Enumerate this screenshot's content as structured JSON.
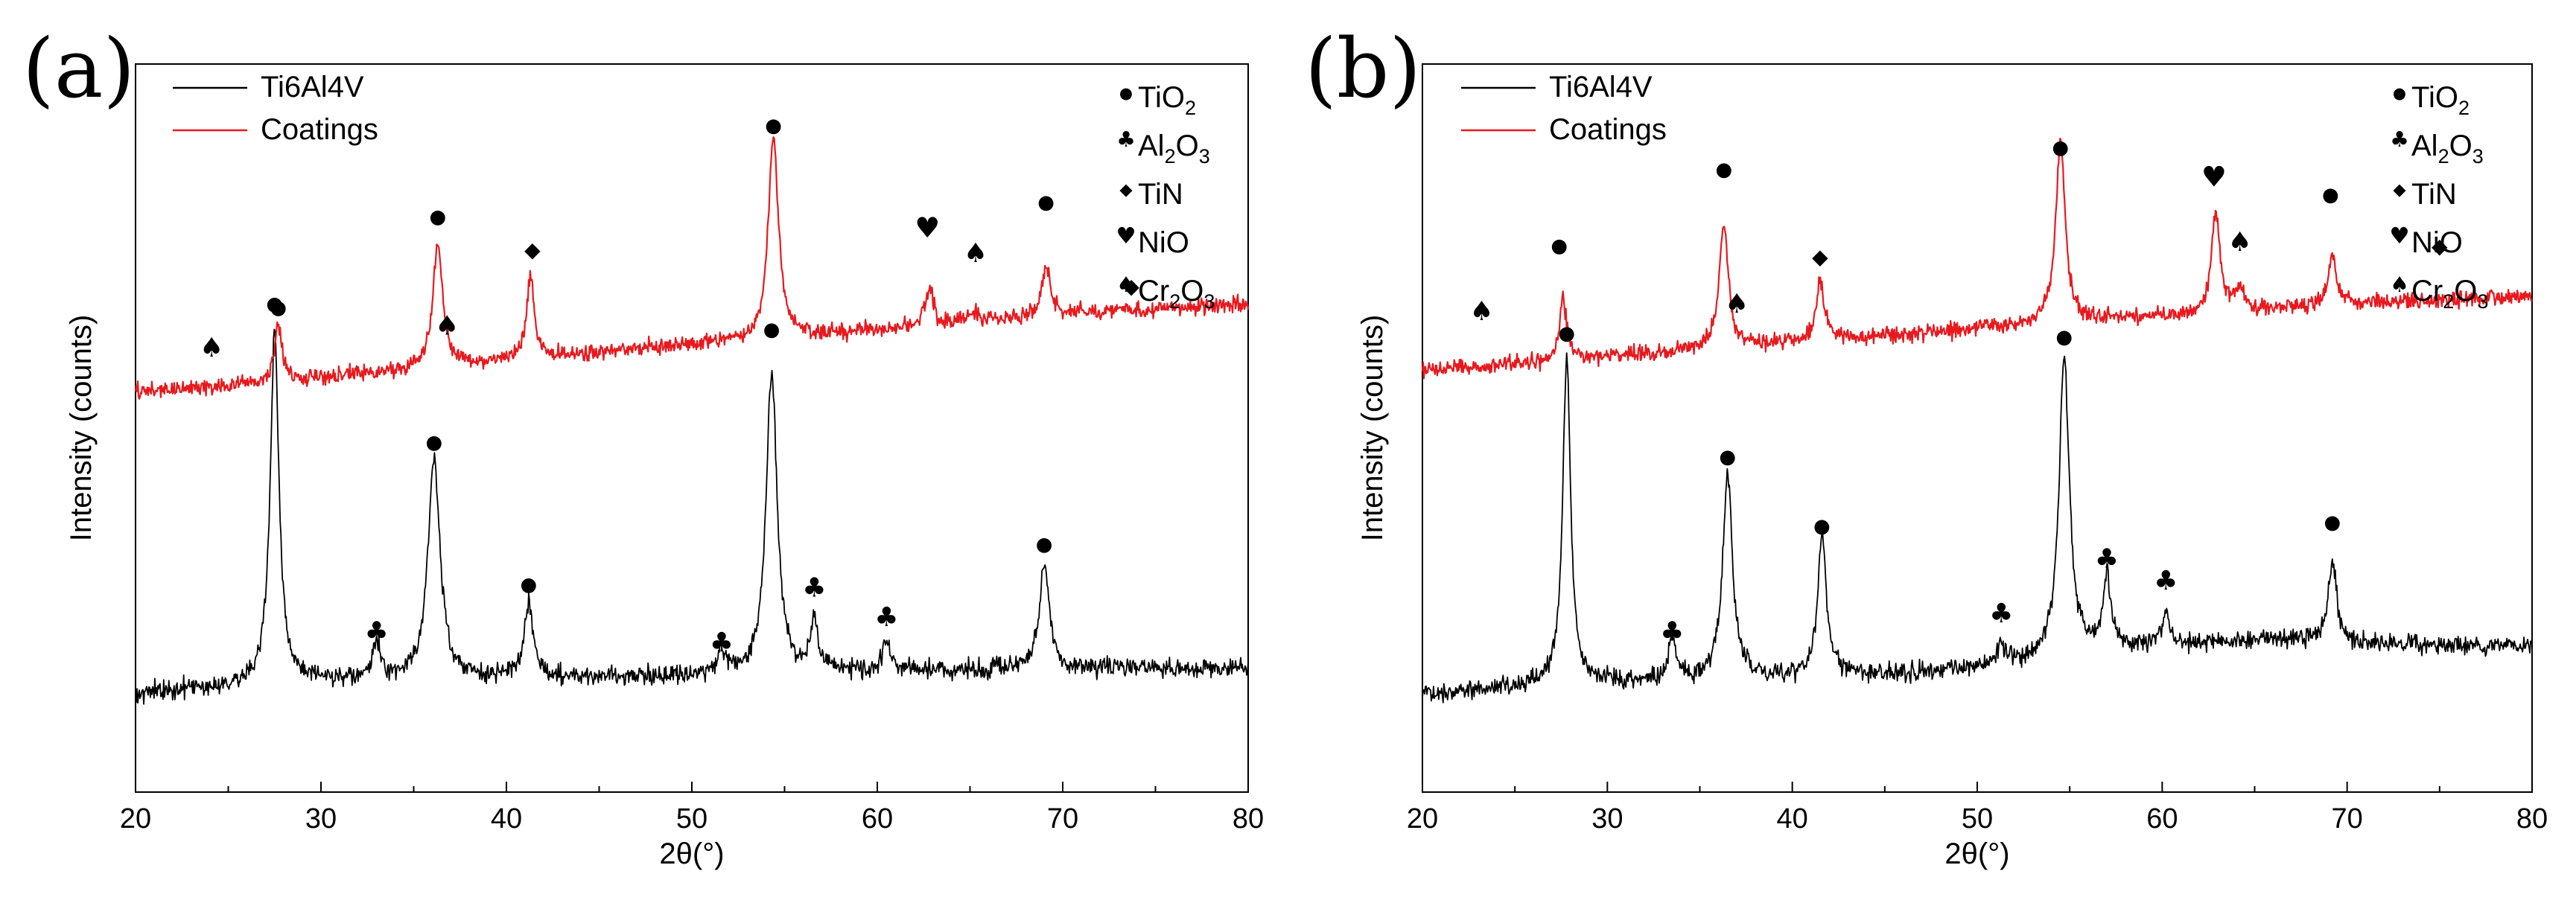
{
  "chart_data": [
    {
      "type": "line",
      "panel_label": "(a)",
      "xlabel": "2θ(°)",
      "ylabel": "Intensity (counts)",
      "xlim": [
        20,
        80
      ],
      "ylim": [
        0,
        100
      ],
      "xticks": [
        "20",
        "30",
        "40",
        "50",
        "60",
        "70",
        "80"
      ],
      "grid": false,
      "legend_position": "top-left",
      "series": [
        {
          "name": "Ti6Al4V",
          "color": "#000000",
          "baseline": [
            [
              20,
              13.5
            ],
            [
              27,
              15.0
            ],
            [
              30,
              15.2
            ],
            [
              35,
              15.3
            ],
            [
              40,
              15.6
            ],
            [
              45,
              15.8
            ],
            [
              50,
              16.0
            ],
            [
              55,
              16.2
            ],
            [
              60,
              16.6
            ],
            [
              65,
              16.8
            ],
            [
              70,
              17.0
            ],
            [
              75,
              17.0
            ],
            [
              80,
              17.0
            ]
          ],
          "noise": 1.3,
          "peaks": [
            [
              27.5,
              48.5,
              0.28
            ],
            [
              33.0,
              5.0,
              0.25
            ],
            [
              36.1,
              30.0,
              0.4
            ],
            [
              41.2,
              10.0,
              0.3
            ],
            [
              51.6,
              3.0,
              0.25
            ],
            [
              54.3,
              41.5,
              0.35
            ],
            [
              56.6,
              7.0,
              0.25
            ],
            [
              60.5,
              4.0,
              0.25
            ],
            [
              69.0,
              15.0,
              0.3
            ]
          ]
        },
        {
          "name": "Coatings",
          "color": "#e8191e",
          "baseline": [
            [
              20,
              55.0
            ],
            [
              25,
              55.8
            ],
            [
              30,
              57.0
            ],
            [
              35,
              58.0
            ],
            [
              40,
              59.2
            ],
            [
              45,
              60.4
            ],
            [
              50,
              61.4
            ],
            [
              55,
              62.5
            ],
            [
              60,
              63.4
            ],
            [
              65,
              64.5
            ],
            [
              70,
              65.6
            ],
            [
              75,
              66.4
            ],
            [
              80,
              67.0
            ]
          ],
          "noise": 1.1,
          "peaks": [
            [
              27.7,
              8.0,
              0.22
            ],
            [
              36.3,
              17.0,
              0.32
            ],
            [
              41.3,
              11.0,
              0.26
            ],
            [
              54.4,
              28.0,
              0.32
            ],
            [
              62.8,
              5.0,
              0.28
            ],
            [
              65.2,
              1.5,
              0.3
            ],
            [
              69.1,
              7.0,
              0.26
            ]
          ]
        }
      ],
      "markers": [
        {
          "phase": "TiO2",
          "x": 27.7,
          "y": 66.5
        },
        {
          "phase": "TiO2",
          "x": 36.3,
          "y": 79.0
        },
        {
          "phase": "TiO2",
          "x": 54.4,
          "y": 91.5
        },
        {
          "phase": "TiO2",
          "x": 69.1,
          "y": 81.0
        },
        {
          "phase": "TiN",
          "x": 41.4,
          "y": 74.5
        },
        {
          "phase": "TiN",
          "x": 73.7,
          "y": 69.5
        },
        {
          "phase": "NiO",
          "x": 62.7,
          "y": 77.5
        },
        {
          "phase": "Cr2O3",
          "x": 24.1,
          "y": 61.0
        },
        {
          "phase": "Cr2O3",
          "x": 36.8,
          "y": 64.0
        },
        {
          "phase": "Cr2O3",
          "x": 65.3,
          "y": 74.0
        },
        {
          "phase": "TiO2",
          "x": 27.5,
          "y": 67.0
        },
        {
          "phase": "TiO2",
          "x": 36.1,
          "y": 48.0
        },
        {
          "phase": "TiO2",
          "x": 41.2,
          "y": 28.5
        },
        {
          "phase": "TiO2",
          "x": 54.3,
          "y": 63.5
        },
        {
          "phase": "TiO2",
          "x": 69.0,
          "y": 34.0
        },
        {
          "phase": "Al2O3",
          "x": 33.0,
          "y": 22.0
        },
        {
          "phase": "Al2O3",
          "x": 51.6,
          "y": 20.5
        },
        {
          "phase": "Al2O3",
          "x": 56.6,
          "y": 28.0
        },
        {
          "phase": "Al2O3",
          "x": 60.5,
          "y": 24.0
        }
      ]
    },
    {
      "type": "line",
      "panel_label": "(b)",
      "xlabel": "2θ(°)",
      "ylabel": "Intensity (counts)",
      "xlim": [
        20,
        80
      ],
      "ylim": [
        0,
        100
      ],
      "xticks": [
        "20",
        "30",
        "40",
        "50",
        "60",
        "70",
        "80"
      ],
      "grid": false,
      "legend_position": "top-left",
      "series": [
        {
          "name": "Ti6Al4V",
          "color": "#000000",
          "baseline": [
            [
              20,
              13.5
            ],
            [
              27,
              15.0
            ],
            [
              30,
              15.2
            ],
            [
              35,
              15.4
            ],
            [
              40,
              15.9
            ],
            [
              45,
              16.3
            ],
            [
              50,
              17.0
            ],
            [
              55,
              18.8
            ],
            [
              60,
              20.3
            ],
            [
              65,
              20.9
            ],
            [
              70,
              20.5
            ],
            [
              75,
              20.2
            ],
            [
              80,
              20.2
            ]
          ],
          "noise": 1.3,
          "peaks": [
            [
              27.8,
              45.0,
              0.25
            ],
            [
              33.5,
              5.5,
              0.25
            ],
            [
              36.5,
              28.0,
              0.32
            ],
            [
              41.6,
              19.0,
              0.28
            ],
            [
              51.3,
              3.0,
              0.25
            ],
            [
              54.7,
              41.0,
              0.33
            ],
            [
              57.0,
              10.0,
              0.25
            ],
            [
              60.2,
              4.0,
              0.25
            ],
            [
              69.2,
              11.0,
              0.28
            ]
          ]
        },
        {
          "name": "Coatings",
          "color": "#e8191e",
          "baseline": [
            [
              20,
              58.0
            ],
            [
              25,
              58.8
            ],
            [
              30,
              59.8
            ],
            [
              35,
              60.8
            ],
            [
              40,
              61.8
            ],
            [
              45,
              62.7
            ],
            [
              50,
              63.7
            ],
            [
              55,
              64.6
            ],
            [
              60,
              65.3
            ],
            [
              65,
              66.2
            ],
            [
              70,
              67.0
            ],
            [
              75,
              67.6
            ],
            [
              80,
              68.0
            ]
          ],
          "noise": 1.1,
          "peaks": [
            [
              27.6,
              9.0,
              0.22
            ],
            [
              36.3,
              17.0,
              0.3
            ],
            [
              41.5,
              8.5,
              0.26
            ],
            [
              54.5,
              25.0,
              0.3
            ],
            [
              62.9,
              13.5,
              0.28
            ],
            [
              64.2,
              3.0,
              0.28
            ],
            [
              69.2,
              7.0,
              0.26
            ]
          ]
        }
      ],
      "markers": [
        {
          "phase": "TiO2",
          "x": 27.4,
          "y": 75.0
        },
        {
          "phase": "TiO2",
          "x": 36.3,
          "y": 85.5
        },
        {
          "phase": "TiO2",
          "x": 54.5,
          "y": 88.5
        },
        {
          "phase": "TiO2",
          "x": 69.1,
          "y": 82.0
        },
        {
          "phase": "TiN",
          "x": 41.5,
          "y": 73.5
        },
        {
          "phase": "TiN",
          "x": 75.0,
          "y": 75.0
        },
        {
          "phase": "NiO",
          "x": 62.8,
          "y": 84.5
        },
        {
          "phase": "Cr2O3",
          "x": 23.2,
          "y": 66.0
        },
        {
          "phase": "Cr2O3",
          "x": 37.0,
          "y": 67.0
        },
        {
          "phase": "Cr2O3",
          "x": 64.2,
          "y": 75.5
        },
        {
          "phase": "TiO2",
          "x": 27.8,
          "y": 63.0
        },
        {
          "phase": "TiO2",
          "x": 36.5,
          "y": 46.0
        },
        {
          "phase": "TiO2",
          "x": 41.6,
          "y": 36.5
        },
        {
          "phase": "TiO2",
          "x": 54.7,
          "y": 62.5
        },
        {
          "phase": "TiO2",
          "x": 69.2,
          "y": 37.0
        },
        {
          "phase": "Al2O3",
          "x": 33.5,
          "y": 22.0
        },
        {
          "phase": "Al2O3",
          "x": 51.3,
          "y": 24.5
        },
        {
          "phase": "Al2O3",
          "x": 57.0,
          "y": 32.0
        },
        {
          "phase": "Al2O3",
          "x": 60.2,
          "y": 29.0
        }
      ]
    }
  ],
  "phase_legend": [
    {
      "phase": "TiO2",
      "symbol": "●",
      "base": "TiO",
      "parts": [
        {
          "t": "Ti"
        },
        {
          "t": "O"
        },
        {
          "t": "2",
          "sub": true
        }
      ]
    },
    {
      "phase": "Al2O3",
      "symbol": "♣",
      "base": "AlO",
      "parts": [
        {
          "t": "Al"
        },
        {
          "t": "2",
          "sub": true
        },
        {
          "t": "O"
        },
        {
          "t": "3",
          "sub": true
        }
      ]
    },
    {
      "phase": "TiN",
      "symbol": "◆",
      "base": "TiN",
      "parts": [
        {
          "t": "TiN"
        }
      ]
    },
    {
      "phase": "NiO",
      "symbol": "♥",
      "base": "NiO",
      "parts": [
        {
          "t": "NiO"
        }
      ]
    },
    {
      "phase": "Cr2O3",
      "symbol": "♠",
      "base": "CrO",
      "parts": [
        {
          "t": "Cr"
        },
        {
          "t": "2",
          "sub": true
        },
        {
          "t": "O"
        },
        {
          "t": "3",
          "sub": true
        }
      ]
    }
  ]
}
